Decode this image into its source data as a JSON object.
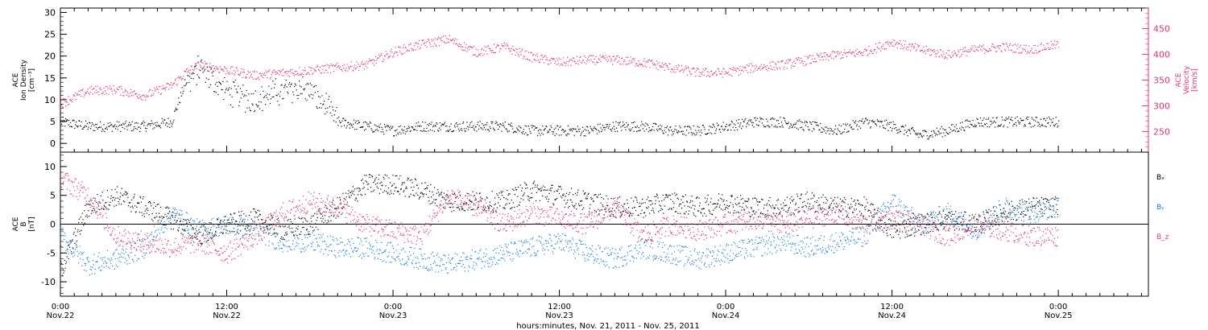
{
  "chart_data": [
    {
      "type": "scatter",
      "panel": "top",
      "left_axis": {
        "label_lines": [
          "ACE",
          "Ion Density",
          "[cm⁻³]"
        ],
        "ylim": [
          -2,
          31
        ],
        "ticks": [
          0,
          5,
          10,
          15,
          20,
          25,
          30
        ]
      },
      "right_axis": {
        "label_lines": [
          "ACE",
          "Velocity",
          "[km/s]"
        ],
        "ylim": [
          210,
          490
        ],
        "ticks": [
          250,
          300,
          350,
          400,
          450
        ]
      },
      "x_hours_range": [
        0,
        72
      ],
      "series": [
        {
          "axis": "left",
          "color": "#000000",
          "x": [
            0,
            2,
            4,
            6,
            8,
            9,
            10,
            12,
            14,
            16,
            17,
            18,
            19,
            20,
            22,
            24,
            26,
            28,
            30,
            32,
            34,
            36,
            38,
            40,
            42,
            44,
            46,
            48,
            50,
            52,
            54,
            56,
            58,
            60,
            62,
            64,
            66,
            68,
            70,
            72
          ],
          "values": [
            5,
            4,
            4,
            4,
            5,
            14,
            17,
            12,
            10,
            12,
            13,
            12,
            9,
            5,
            4,
            3,
            4,
            4,
            4,
            4,
            3,
            3,
            3,
            4,
            4,
            3,
            3,
            4,
            5,
            5,
            4,
            3,
            5,
            4,
            2,
            3,
            5,
            5,
            5,
            5
          ]
        },
        {
          "axis": "right",
          "color": "#e8356b",
          "x": [
            0,
            2,
            4,
            6,
            8,
            9,
            10,
            12,
            14,
            16,
            18,
            20,
            22,
            24,
            26,
            28,
            30,
            32,
            34,
            36,
            38,
            40,
            42,
            44,
            46,
            48,
            50,
            52,
            54,
            56,
            58,
            60,
            62,
            64,
            66,
            68,
            70,
            72
          ],
          "values": [
            305,
            330,
            332,
            320,
            340,
            365,
            380,
            370,
            360,
            365,
            370,
            375,
            380,
            405,
            420,
            430,
            405,
            415,
            395,
            385,
            390,
            390,
            385,
            375,
            365,
            365,
            375,
            380,
            390,
            400,
            405,
            425,
            410,
            400,
            410,
            415,
            410,
            420
          ]
        }
      ]
    },
    {
      "type": "scatter",
      "panel": "bottom",
      "left_axis": {
        "label_lines": [
          "ACE",
          "B",
          "[nT]"
        ],
        "ylim": [
          -12.5,
          12.5
        ],
        "ticks": [
          -10,
          -5,
          0,
          5,
          10
        ]
      },
      "x_hours_range": [
        0,
        72
      ],
      "legend": [
        "Bₓ",
        "Bᵧ",
        "B_z"
      ],
      "series": [
        {
          "name": "Bₓ",
          "color": "#000000",
          "x": [
            0,
            2,
            4,
            6,
            8,
            10,
            12,
            14,
            16,
            18,
            20,
            22,
            24,
            26,
            28,
            30,
            32,
            34,
            36,
            38,
            40,
            42,
            44,
            46,
            48,
            50,
            52,
            54,
            56,
            58,
            60,
            62,
            64,
            66,
            68,
            70,
            72
          ],
          "values": [
            -8,
            3,
            5,
            3,
            1,
            -2,
            0,
            1,
            -1,
            0,
            3,
            7,
            7,
            6,
            4,
            4,
            4,
            6,
            5,
            4,
            3,
            3,
            4,
            3,
            4,
            3,
            3,
            4,
            3,
            3,
            -1,
            0,
            1,
            0,
            2,
            3,
            3
          ]
        },
        {
          "name": "Bᵧ",
          "color": "#1a80dd",
          "x": [
            0,
            2,
            4,
            6,
            8,
            10,
            12,
            14,
            16,
            18,
            20,
            22,
            24,
            26,
            28,
            30,
            32,
            34,
            36,
            38,
            40,
            42,
            44,
            46,
            48,
            50,
            52,
            54,
            56,
            58,
            60,
            62,
            64,
            66,
            68,
            70,
            72
          ],
          "values": [
            -2,
            -7,
            -6,
            -4,
            2,
            -1,
            0,
            -1,
            -3,
            -3,
            -4,
            -4,
            -5,
            -6,
            -7,
            -6,
            -5,
            -4,
            -3,
            -5,
            -6,
            -4,
            -5,
            -6,
            -5,
            -4,
            -3,
            -4,
            -3,
            -2,
            4,
            0,
            2,
            -1,
            3,
            2,
            3
          ]
        },
        {
          "name": "B_z",
          "color": "#e8356b",
          "x": [
            0,
            2,
            4,
            6,
            8,
            10,
            12,
            14,
            16,
            18,
            20,
            22,
            24,
            26,
            28,
            30,
            32,
            34,
            36,
            38,
            40,
            42,
            44,
            46,
            48,
            50,
            52,
            54,
            56,
            58,
            60,
            62,
            64,
            66,
            68,
            70,
            72
          ],
          "values": [
            8,
            5,
            -2,
            -3,
            -4,
            -3,
            -5,
            -2,
            2,
            4,
            3,
            0,
            -1,
            -2,
            5,
            3,
            0,
            2,
            1,
            0,
            3,
            -2,
            0,
            -1,
            0,
            1,
            0,
            1,
            2,
            0,
            1,
            0,
            -2,
            0,
            -1,
            -2,
            -2
          ]
        }
      ]
    }
  ],
  "x_axis": {
    "tick_labels": [
      [
        "0:00",
        "Nov.22"
      ],
      [
        "12:00",
        "Nov.22"
      ],
      [
        "0:00",
        "Nov.23"
      ],
      [
        "12:00",
        "Nov.23"
      ],
      [
        "0:00",
        "Nov.24"
      ],
      [
        "12:00",
        "Nov.24"
      ],
      [
        "0:00",
        "Nov.25"
      ]
    ],
    "tick_hours": [
      0,
      12,
      24,
      36,
      48,
      60,
      72
    ],
    "hours_range": [
      0,
      78.5
    ],
    "xlabel": "hours:minutes, Nov. 21, 2011 - Nov. 25, 2011"
  }
}
